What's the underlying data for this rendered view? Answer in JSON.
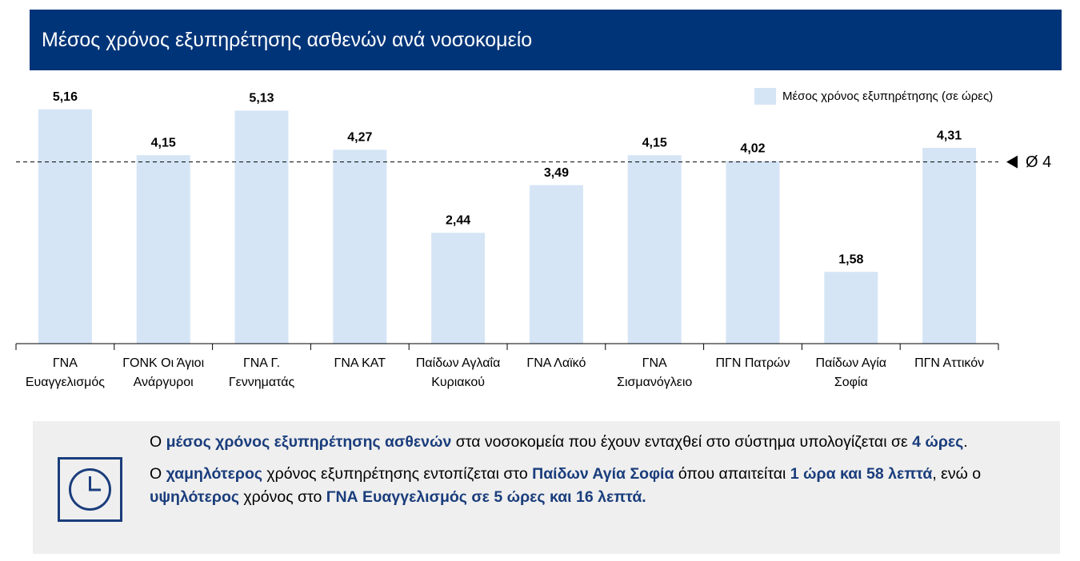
{
  "chart_data": {
    "type": "bar",
    "title": "Μέσος χρόνος εξυπηρέτησης ασθενών ανά νοσοκομείο",
    "categories": [
      "ΓΝΑ Ευαγγελισμός",
      "ΓΟΝΚ Οι Άγιοι Ανάργυροι",
      "ΓΝΑ Γ. Γεννηματάς",
      "ΓΝΑ ΚΑΤ",
      "Παίδων Αγλαΐα Κυριακού",
      "ΓΝΑ Λαϊκό",
      "ΓΝΑ Σισμανόγλειο",
      "ΠΓΝ Πατρών",
      "Παίδων Αγία Σοφία",
      "ΠΓΝ Αττικόν"
    ],
    "series": [
      {
        "name": "Μέσος χρόνος εξυπηρέτησης (σε ώρες)",
        "color": "#d5e5f6",
        "values": [
          5.16,
          4.15,
          5.13,
          4.27,
          2.44,
          3.49,
          4.15,
          4.02,
          1.58,
          4.31
        ],
        "value_labels": [
          "5,16",
          "4,15",
          "5,13",
          "4,27",
          "2,44",
          "3,49",
          "4,15",
          "4,02",
          "1,58",
          "4,31"
        ]
      }
    ],
    "reference_line": {
      "value": 4,
      "label": "Ø 4"
    },
    "ylim": [
      0,
      6
    ],
    "legend": "top-right"
  },
  "info": {
    "paragraphs": [
      [
        {
          "text": "Ο ",
          "bold": false
        },
        {
          "text": "μέσος χρόνος εξυπηρέτησης ασθενών",
          "bold": true
        },
        {
          "text": " στα νοσοκομεία που έχουν ενταχθεί στο σύστημα υπολογίζεται σε ",
          "bold": false
        },
        {
          "text": "4 ώρες",
          "bold": true
        },
        {
          "text": ".",
          "bold": false
        }
      ],
      [
        {
          "text": "Ο ",
          "bold": false
        },
        {
          "text": "χαμηλότερος",
          "bold": true
        },
        {
          "text": " χρόνος εξυπηρέτησης εντοπίζεται στο ",
          "bold": false
        },
        {
          "text": "Παίδων Αγία Σοφία",
          "bold": true
        },
        {
          "text": " όπου απαιτείται ",
          "bold": false
        },
        {
          "text": "1 ώρα και 58 λεπτά",
          "bold": true
        },
        {
          "text": ", ενώ ο ",
          "bold": false
        },
        {
          "text": "υψηλότερος",
          "bold": true
        },
        {
          "text": " χρόνος στο ",
          "bold": false
        },
        {
          "text": "ΓΝΑ Ευαγγελισμός σε 5 ώρες και 16 λεπτά.",
          "bold": true
        }
      ]
    ]
  }
}
